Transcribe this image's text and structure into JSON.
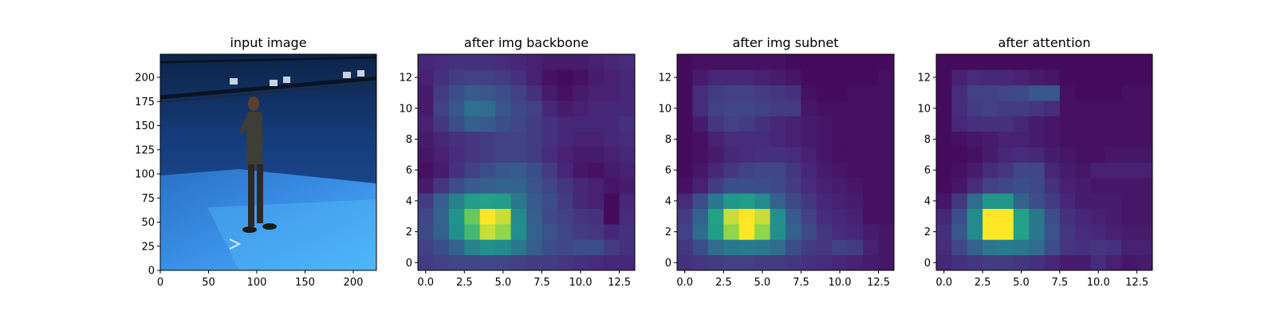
{
  "figure": {
    "background": "#ffffff"
  },
  "chart_data": [
    {
      "type": "image",
      "title": "input image",
      "xlim": [
        0,
        224
      ],
      "ylim": [
        224,
        0
      ],
      "xticks": [
        0,
        50,
        100,
        150,
        200
      ],
      "yticks": [
        0,
        25,
        50,
        75,
        100,
        125,
        150,
        175,
        200
      ],
      "scene": "subject standing in blue motion-capture studio"
    },
    {
      "type": "heatmap",
      "title": "after img backbone",
      "colormap": "viridis",
      "vmin": 0,
      "vmax": 1,
      "xlim": [
        -0.5,
        13.5
      ],
      "ylim": [
        13.5,
        -0.5
      ],
      "xticks": [
        "0.0",
        "2.5",
        "5.0",
        "7.5",
        "10.0",
        "12.5"
      ],
      "yticks": [
        "0",
        "2",
        "4",
        "6",
        "8",
        "10",
        "12"
      ],
      "values": [
        [
          0.22,
          0.24,
          0.26,
          0.26,
          0.28,
          0.26,
          0.24,
          0.22,
          0.22,
          0.2,
          0.18,
          0.16,
          0.14,
          0.14
        ],
        [
          0.24,
          0.3,
          0.4,
          0.55,
          0.62,
          0.6,
          0.5,
          0.38,
          0.3,
          0.26,
          0.3,
          0.3,
          0.22,
          0.18
        ],
        [
          0.28,
          0.4,
          0.62,
          0.8,
          0.95,
          0.9,
          0.62,
          0.4,
          0.32,
          0.26,
          0.22,
          0.2,
          0.14,
          0.18
        ],
        [
          0.26,
          0.4,
          0.65,
          0.85,
          1.0,
          0.95,
          0.6,
          0.38,
          0.28,
          0.24,
          0.2,
          0.18,
          0.04,
          0.16
        ],
        [
          0.22,
          0.38,
          0.55,
          0.7,
          0.72,
          0.7,
          0.5,
          0.36,
          0.3,
          0.22,
          0.14,
          0.12,
          0.04,
          0.14
        ],
        [
          0.1,
          0.2,
          0.3,
          0.36,
          0.38,
          0.4,
          0.4,
          0.32,
          0.26,
          0.2,
          0.14,
          0.12,
          0.08,
          0.1
        ],
        [
          0.06,
          0.1,
          0.18,
          0.24,
          0.3,
          0.34,
          0.36,
          0.3,
          0.22,
          0.14,
          0.08,
          0.06,
          0.1,
          0.12
        ],
        [
          0.08,
          0.12,
          0.16,
          0.2,
          0.22,
          0.24,
          0.24,
          0.22,
          0.16,
          0.12,
          0.1,
          0.1,
          0.12,
          0.14
        ],
        [
          0.1,
          0.14,
          0.18,
          0.2,
          0.22,
          0.24,
          0.24,
          0.22,
          0.18,
          0.14,
          0.12,
          0.12,
          0.14,
          0.16
        ],
        [
          0.12,
          0.2,
          0.3,
          0.38,
          0.36,
          0.3,
          0.26,
          0.22,
          0.18,
          0.14,
          0.14,
          0.14,
          0.14,
          0.18
        ],
        [
          0.1,
          0.24,
          0.34,
          0.46,
          0.44,
          0.34,
          0.28,
          0.24,
          0.14,
          0.1,
          0.12,
          0.14,
          0.14,
          0.14
        ],
        [
          0.1,
          0.22,
          0.3,
          0.36,
          0.34,
          0.3,
          0.24,
          0.18,
          0.1,
          0.06,
          0.1,
          0.12,
          0.12,
          0.14
        ],
        [
          0.12,
          0.18,
          0.22,
          0.24,
          0.24,
          0.22,
          0.18,
          0.12,
          0.06,
          0.04,
          0.06,
          0.1,
          0.12,
          0.14
        ],
        [
          0.14,
          0.16,
          0.18,
          0.18,
          0.18,
          0.16,
          0.14,
          0.12,
          0.1,
          0.1,
          0.1,
          0.12,
          0.14,
          0.16
        ]
      ]
    },
    {
      "type": "heatmap",
      "title": "after img subnet",
      "colormap": "viridis",
      "vmin": 0,
      "vmax": 1,
      "xlim": [
        -0.5,
        13.5
      ],
      "ylim": [
        13.5,
        -0.5
      ],
      "xticks": [
        "0.0",
        "2.5",
        "5.0",
        "7.5",
        "10.0",
        "12.5"
      ],
      "yticks": [
        "0",
        "2",
        "4",
        "6",
        "8",
        "10",
        "12"
      ],
      "values": [
        [
          0.18,
          0.2,
          0.22,
          0.24,
          0.24,
          0.22,
          0.22,
          0.2,
          0.18,
          0.16,
          0.14,
          0.12,
          0.1,
          0.08
        ],
        [
          0.2,
          0.3,
          0.44,
          0.5,
          0.52,
          0.5,
          0.44,
          0.3,
          0.22,
          0.2,
          0.24,
          0.22,
          0.12,
          0.08
        ],
        [
          0.24,
          0.44,
          0.7,
          0.9,
          1.0,
          0.9,
          0.62,
          0.4,
          0.28,
          0.2,
          0.16,
          0.14,
          0.1,
          0.08
        ],
        [
          0.22,
          0.4,
          0.72,
          0.95,
          1.0,
          0.95,
          0.62,
          0.36,
          0.24,
          0.16,
          0.14,
          0.12,
          0.06,
          0.06
        ],
        [
          0.16,
          0.3,
          0.5,
          0.66,
          0.7,
          0.6,
          0.4,
          0.28,
          0.2,
          0.14,
          0.12,
          0.1,
          0.06,
          0.06
        ],
        [
          0.06,
          0.12,
          0.22,
          0.3,
          0.3,
          0.3,
          0.28,
          0.22,
          0.16,
          0.12,
          0.1,
          0.08,
          0.06,
          0.06
        ],
        [
          0.04,
          0.08,
          0.14,
          0.2,
          0.24,
          0.26,
          0.26,
          0.2,
          0.14,
          0.1,
          0.08,
          0.06,
          0.06,
          0.06
        ],
        [
          0.04,
          0.06,
          0.1,
          0.14,
          0.16,
          0.18,
          0.18,
          0.16,
          0.12,
          0.08,
          0.06,
          0.06,
          0.06,
          0.06
        ],
        [
          0.04,
          0.06,
          0.12,
          0.16,
          0.16,
          0.16,
          0.14,
          0.12,
          0.1,
          0.08,
          0.06,
          0.06,
          0.06,
          0.06
        ],
        [
          0.04,
          0.1,
          0.2,
          0.24,
          0.22,
          0.18,
          0.14,
          0.12,
          0.1,
          0.08,
          0.06,
          0.06,
          0.06,
          0.06
        ],
        [
          0.04,
          0.16,
          0.24,
          0.26,
          0.26,
          0.24,
          0.22,
          0.22,
          0.08,
          0.06,
          0.06,
          0.06,
          0.06,
          0.06
        ],
        [
          0.04,
          0.16,
          0.22,
          0.24,
          0.24,
          0.22,
          0.2,
          0.18,
          0.06,
          0.04,
          0.04,
          0.06,
          0.06,
          0.06
        ],
        [
          0.04,
          0.1,
          0.14,
          0.14,
          0.14,
          0.12,
          0.1,
          0.08,
          0.04,
          0.04,
          0.04,
          0.04,
          0.04,
          0.06
        ],
        [
          0.04,
          0.06,
          0.06,
          0.06,
          0.06,
          0.06,
          0.06,
          0.04,
          0.04,
          0.04,
          0.04,
          0.04,
          0.04,
          0.04
        ]
      ]
    },
    {
      "type": "heatmap",
      "title": "after attention",
      "colormap": "viridis",
      "vmin": 0,
      "vmax": 1,
      "xlim": [
        -0.5,
        13.5
      ],
      "ylim": [
        13.5,
        -0.5
      ],
      "xticks": [
        "0.0",
        "2.5",
        "5.0",
        "7.5",
        "10.0",
        "12.5"
      ],
      "yticks": [
        "0",
        "2",
        "4",
        "6",
        "8",
        "10",
        "12"
      ],
      "values": [
        [
          0.14,
          0.18,
          0.2,
          0.22,
          0.22,
          0.2,
          0.18,
          0.14,
          0.1,
          0.1,
          0.16,
          0.12,
          0.08,
          0.1
        ],
        [
          0.16,
          0.26,
          0.4,
          0.5,
          0.52,
          0.5,
          0.44,
          0.3,
          0.2,
          0.18,
          0.2,
          0.18,
          0.12,
          0.12
        ],
        [
          0.18,
          0.34,
          0.6,
          1.0,
          1.0,
          0.72,
          0.5,
          0.32,
          0.2,
          0.16,
          0.14,
          0.12,
          0.1,
          0.1
        ],
        [
          0.14,
          0.3,
          0.6,
          1.0,
          1.0,
          0.72,
          0.5,
          0.3,
          0.18,
          0.14,
          0.12,
          0.1,
          0.08,
          0.08
        ],
        [
          0.08,
          0.2,
          0.44,
          0.66,
          0.66,
          0.4,
          0.3,
          0.22,
          0.14,
          0.1,
          0.1,
          0.1,
          0.08,
          0.08
        ],
        [
          0.04,
          0.08,
          0.16,
          0.24,
          0.26,
          0.3,
          0.28,
          0.18,
          0.12,
          0.1,
          0.08,
          0.08,
          0.08,
          0.08
        ],
        [
          0.04,
          0.06,
          0.1,
          0.16,
          0.2,
          0.26,
          0.26,
          0.14,
          0.1,
          0.08,
          0.12,
          0.12,
          0.12,
          0.12
        ],
        [
          0.04,
          0.04,
          0.06,
          0.1,
          0.14,
          0.16,
          0.14,
          0.1,
          0.08,
          0.06,
          0.06,
          0.08,
          0.08,
          0.08
        ],
        [
          0.04,
          0.06,
          0.08,
          0.1,
          0.12,
          0.12,
          0.1,
          0.08,
          0.06,
          0.06,
          0.06,
          0.06,
          0.06,
          0.06
        ],
        [
          0.04,
          0.14,
          0.18,
          0.18,
          0.18,
          0.14,
          0.1,
          0.08,
          0.06,
          0.06,
          0.06,
          0.06,
          0.06,
          0.06
        ],
        [
          0.04,
          0.16,
          0.22,
          0.24,
          0.22,
          0.22,
          0.2,
          0.16,
          0.06,
          0.06,
          0.06,
          0.06,
          0.06,
          0.06
        ],
        [
          0.04,
          0.16,
          0.24,
          0.24,
          0.26,
          0.28,
          0.34,
          0.34,
          0.06,
          0.04,
          0.04,
          0.04,
          0.06,
          0.06
        ],
        [
          0.04,
          0.12,
          0.16,
          0.14,
          0.14,
          0.12,
          0.1,
          0.08,
          0.04,
          0.04,
          0.04,
          0.04,
          0.04,
          0.04
        ],
        [
          0.04,
          0.04,
          0.04,
          0.04,
          0.04,
          0.04,
          0.04,
          0.04,
          0.04,
          0.04,
          0.04,
          0.04,
          0.04,
          0.04
        ]
      ]
    }
  ]
}
